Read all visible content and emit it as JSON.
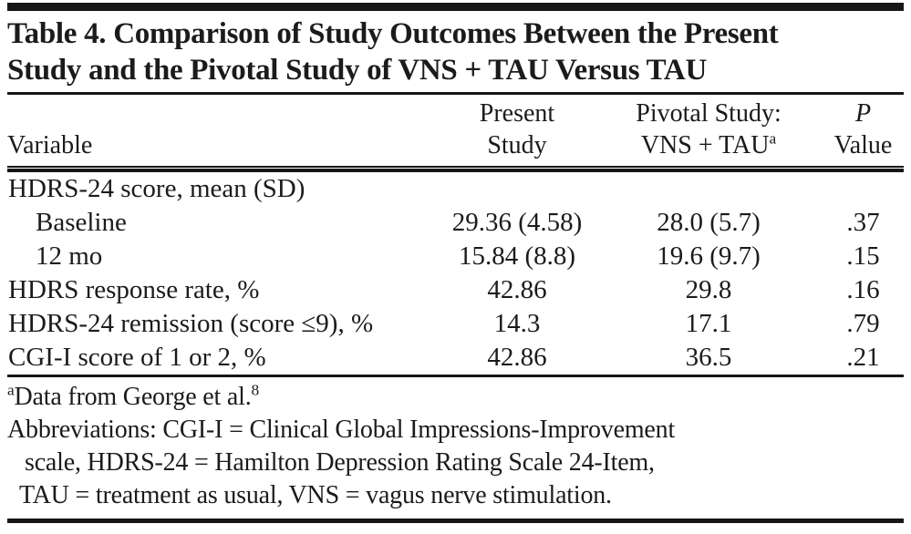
{
  "doc": {
    "title_line1": "Table 4. Comparison of Study Outcomes Between the Present",
    "title_line2": "Study and the Pivotal Study of VNS + TAU Versus TAU",
    "header": {
      "variable": "Variable",
      "present_line1": "Present",
      "present_line2": "Study",
      "pivotal_line1": "Pivotal Study:",
      "pivotal_line2": "VNS + TAU",
      "pivotal_sup": "a",
      "p_line1": "P",
      "p_line2": "Value"
    },
    "rows": [
      {
        "label": "HDRS-24 score, mean (SD)",
        "present": "",
        "pivotal": "",
        "p": ""
      },
      {
        "label": "Baseline",
        "present": "29.36 (4.58)",
        "pivotal": "28.0 (5.7)",
        "p": ".37"
      },
      {
        "label": "12 mo",
        "present": "15.84 (8.8)",
        "pivotal": "19.6 (9.7)",
        "p": ".15"
      },
      {
        "label": "HDRS response rate, %",
        "present": "42.86",
        "pivotal": "29.8",
        "p": ".16"
      },
      {
        "label": "HDRS-24 remission (score ≤9), %",
        "present": "14.3",
        "pivotal": "17.1",
        "p": ".79"
      },
      {
        "label": "CGI-I score of 1 or 2, %",
        "present": "42.86",
        "pivotal": "36.5",
        "p": ".21"
      }
    ],
    "footnotes": {
      "source_marker": "a",
      "source_text": "Data from George et al.",
      "source_ref": "8",
      "abbrev_line1": "Abbreviations: CGI-I = Clinical Global Impressions-Improvement",
      "abbrev_line2": "scale, HDRS-24 = Hamilton Depression Rating Scale 24-Item,",
      "abbrev_line3": "TAU = treatment as usual, VNS = vagus nerve stimulation."
    }
  },
  "colors": {
    "background": "#ffffff",
    "text": "#1b1b1b",
    "rule": "#161616"
  }
}
